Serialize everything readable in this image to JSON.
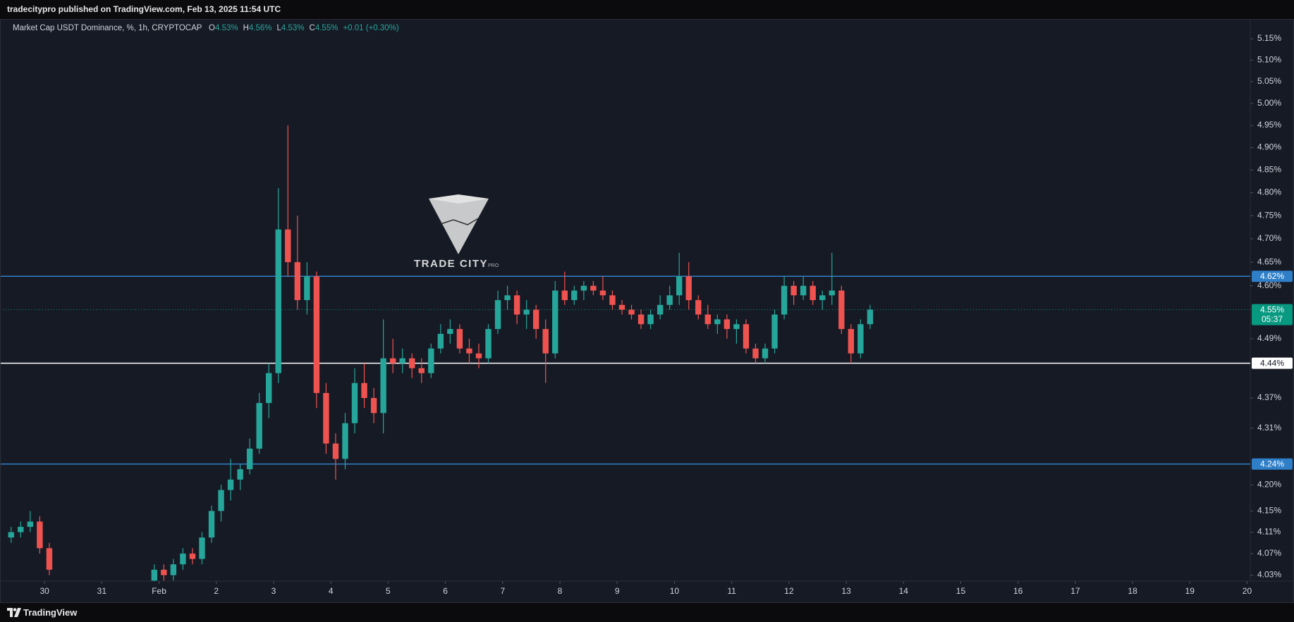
{
  "header": {
    "published": "tradecitypro published on TradingView.com, Feb 13, 2025 11:54 UTC"
  },
  "footer": {
    "brand": "TradingView"
  },
  "watermark": {
    "name": "TRADE CITY",
    "suffix": "PRO"
  },
  "chart_data": {
    "type": "candlestick",
    "title": "Market Cap USDT Dominance, %, 1h, CRYPTOCAP",
    "legend": {
      "open_key": "O",
      "open": "4.53%",
      "high_key": "H",
      "high": "4.56%",
      "low_key": "L",
      "low": "4.53%",
      "close_key": "C",
      "close": "4.55%",
      "change": "+0.01 (+0.30%)"
    },
    "up_color": "#26a69a",
    "down_color": "#ef5350",
    "log_scale": true,
    "ylim": [
      4.019,
      5.185
    ],
    "yticks": [
      {
        "value": 5.15,
        "label": "5.15%"
      },
      {
        "value": 5.1,
        "label": "5.10%"
      },
      {
        "value": 5.05,
        "label": "5.05%"
      },
      {
        "value": 5.0,
        "label": "5.00%"
      },
      {
        "value": 4.95,
        "label": "4.95%"
      },
      {
        "value": 4.9,
        "label": "4.90%"
      },
      {
        "value": 4.85,
        "label": "4.85%"
      },
      {
        "value": 4.8,
        "label": "4.80%"
      },
      {
        "value": 4.75,
        "label": "4.75%"
      },
      {
        "value": 4.7,
        "label": "4.70%"
      },
      {
        "value": 4.65,
        "label": "4.65%"
      },
      {
        "value": 4.6,
        "label": "4.60%"
      },
      {
        "value": 4.49,
        "label": "4.49%"
      },
      {
        "value": 4.37,
        "label": "4.37%"
      },
      {
        "value": 4.31,
        "label": "4.31%"
      },
      {
        "value": 4.2,
        "label": "4.20%"
      },
      {
        "value": 4.15,
        "label": "4.15%"
      },
      {
        "value": 4.11,
        "label": "4.11%"
      },
      {
        "value": 4.07,
        "label": "4.07%"
      },
      {
        "value": 4.03,
        "label": "4.03%"
      }
    ],
    "xlim": [
      "2025-01-29 05:20",
      "2025-02-20 01:20"
    ],
    "xticks": [
      {
        "value": "2025-01-30",
        "label": "30"
      },
      {
        "value": "2025-01-31",
        "label": "31"
      },
      {
        "value": "2025-02-01",
        "label": "Feb"
      },
      {
        "value": "2025-02-02",
        "label": "2"
      },
      {
        "value": "2025-02-03",
        "label": "3"
      },
      {
        "value": "2025-02-04",
        "label": "4"
      },
      {
        "value": "2025-02-05",
        "label": "5"
      },
      {
        "value": "2025-02-06",
        "label": "6"
      },
      {
        "value": "2025-02-07",
        "label": "7"
      },
      {
        "value": "2025-02-08",
        "label": "8"
      },
      {
        "value": "2025-02-09",
        "label": "9"
      },
      {
        "value": "2025-02-10",
        "label": "10"
      },
      {
        "value": "2025-02-11",
        "label": "11"
      },
      {
        "value": "2025-02-12",
        "label": "12"
      },
      {
        "value": "2025-02-13",
        "label": "13"
      },
      {
        "value": "2025-02-14",
        "label": "14"
      },
      {
        "value": "2025-02-15",
        "label": "15"
      },
      {
        "value": "2025-02-16",
        "label": "16"
      },
      {
        "value": "2025-02-17",
        "label": "17"
      },
      {
        "value": "2025-02-18",
        "label": "18"
      },
      {
        "value": "2025-02-19",
        "label": "19"
      },
      {
        "value": "2025-02-20",
        "label": "20"
      }
    ],
    "levels": [
      {
        "value": 4.62,
        "label": "4.62%",
        "color": "#2f7fc8",
        "style": "solid"
      },
      {
        "value": 4.55,
        "label": "4.55%",
        "countdown": "05:37",
        "color": "#089981",
        "style": "dotted"
      },
      {
        "value": 4.44,
        "label": "4.44%",
        "color": "#ffffff",
        "style": "solid"
      },
      {
        "value": 4.24,
        "label": "4.24%",
        "color": "#2f7fc8",
        "style": "solid"
      }
    ],
    "x": [
      "2025-01-29 08:00",
      "2025-01-29 12:00",
      "2025-01-29 16:00",
      "2025-01-29 20:00",
      "2025-01-30 00:00",
      "2025-01-31 20:00",
      "2025-02-01 00:00",
      "2025-02-01 04:00",
      "2025-02-01 08:00",
      "2025-02-01 12:00",
      "2025-02-01 16:00",
      "2025-02-01 20:00",
      "2025-02-02 00:00",
      "2025-02-02 04:00",
      "2025-02-02 08:00",
      "2025-02-02 12:00",
      "2025-02-02 16:00",
      "2025-02-02 20:00",
      "2025-02-03 00:00",
      "2025-02-03 04:00",
      "2025-02-03 08:00",
      "2025-02-03 12:00",
      "2025-02-03 16:00",
      "2025-02-03 20:00",
      "2025-02-04 00:00",
      "2025-02-04 04:00",
      "2025-02-04 08:00",
      "2025-02-04 12:00",
      "2025-02-04 16:00",
      "2025-02-04 20:00",
      "2025-02-05 00:00",
      "2025-02-05 04:00",
      "2025-02-05 08:00",
      "2025-02-05 12:00",
      "2025-02-05 16:00",
      "2025-02-05 20:00",
      "2025-02-06 00:00",
      "2025-02-06 04:00",
      "2025-02-06 08:00",
      "2025-02-06 12:00",
      "2025-02-06 16:00",
      "2025-02-06 20:00",
      "2025-02-07 00:00",
      "2025-02-07 04:00",
      "2025-02-07 08:00",
      "2025-02-07 12:00",
      "2025-02-07 16:00",
      "2025-02-07 20:00",
      "2025-02-08 00:00",
      "2025-02-08 04:00",
      "2025-02-08 08:00",
      "2025-02-08 12:00",
      "2025-02-08 16:00",
      "2025-02-08 20:00",
      "2025-02-09 00:00",
      "2025-02-09 04:00",
      "2025-02-09 08:00",
      "2025-02-09 12:00",
      "2025-02-09 16:00",
      "2025-02-09 20:00",
      "2025-02-10 00:00",
      "2025-02-10 04:00",
      "2025-02-10 08:00",
      "2025-02-10 12:00",
      "2025-02-10 16:00",
      "2025-02-10 20:00",
      "2025-02-11 00:00",
      "2025-02-11 04:00",
      "2025-02-11 08:00",
      "2025-02-11 12:00",
      "2025-02-11 16:00",
      "2025-02-11 20:00",
      "2025-02-12 00:00",
      "2025-02-12 04:00",
      "2025-02-12 08:00",
      "2025-02-12 12:00",
      "2025-02-12 16:00",
      "2025-02-12 20:00",
      "2025-02-13 00:00",
      "2025-02-13 04:00",
      "2025-02-13 08:00"
    ],
    "open": [
      4.1,
      4.11,
      4.12,
      4.13,
      4.08,
      4.02,
      4.04,
      4.03,
      4.05,
      4.07,
      4.06,
      4.1,
      4.15,
      4.19,
      4.21,
      4.23,
      4.27,
      4.36,
      4.42,
      4.72,
      4.65,
      4.57,
      4.62,
      4.38,
      4.28,
      4.25,
      4.32,
      4.4,
      4.37,
      4.34,
      4.45,
      4.44,
      4.45,
      4.43,
      4.42,
      4.47,
      4.5,
      4.51,
      4.47,
      4.46,
      4.45,
      4.51,
      4.57,
      4.58,
      4.54,
      4.55,
      4.51,
      4.46,
      4.59,
      4.57,
      4.59,
      4.6,
      4.59,
      4.58,
      4.56,
      4.55,
      4.54,
      4.52,
      4.54,
      4.56,
      4.58,
      4.62,
      4.57,
      4.54,
      4.52,
      4.53,
      4.51,
      4.52,
      4.47,
      4.45,
      4.47,
      4.54,
      4.6,
      4.58,
      4.6,
      4.57,
      4.58,
      4.59,
      4.51,
      4.46,
      4.52
    ],
    "high": [
      4.12,
      4.13,
      4.15,
      4.14,
      4.09,
      4.05,
      4.05,
      4.06,
      4.08,
      4.08,
      4.11,
      4.16,
      4.2,
      4.25,
      4.24,
      4.29,
      4.38,
      4.44,
      4.81,
      4.95,
      4.75,
      4.65,
      4.63,
      4.4,
      4.3,
      4.34,
      4.43,
      4.44,
      4.39,
      4.53,
      4.49,
      4.47,
      4.46,
      4.45,
      4.48,
      4.52,
      4.53,
      4.52,
      4.49,
      4.48,
      4.52,
      4.59,
      4.6,
      4.59,
      4.57,
      4.56,
      4.53,
      4.61,
      4.63,
      4.6,
      4.61,
      4.61,
      4.62,
      4.59,
      4.57,
      4.56,
      4.55,
      4.55,
      4.58,
      4.6,
      4.67,
      4.65,
      4.58,
      4.56,
      4.54,
      4.54,
      4.53,
      4.53,
      4.48,
      4.48,
      4.55,
      4.62,
      4.61,
      4.62,
      4.61,
      4.59,
      4.67,
      4.6,
      4.52,
      4.53,
      4.56
    ],
    "low": [
      4.09,
      4.1,
      4.11,
      4.07,
      4.03,
      4.01,
      4.02,
      4.02,
      4.04,
      4.05,
      4.05,
      4.09,
      4.13,
      4.17,
      4.19,
      4.22,
      4.26,
      4.33,
      4.4,
      4.62,
      4.55,
      4.54,
      4.35,
      4.26,
      4.21,
      4.23,
      4.3,
      4.35,
      4.32,
      4.3,
      4.42,
      4.42,
      4.41,
      4.4,
      4.41,
      4.46,
      4.48,
      4.46,
      4.44,
      4.43,
      4.44,
      4.5,
      4.55,
      4.52,
      4.51,
      4.49,
      4.4,
      4.45,
      4.56,
      4.56,
      4.57,
      4.58,
      4.57,
      4.55,
      4.54,
      4.53,
      4.51,
      4.51,
      4.53,
      4.55,
      4.56,
      4.55,
      4.53,
      4.51,
      4.5,
      4.49,
      4.48,
      4.46,
      4.44,
      4.44,
      4.46,
      4.53,
      4.56,
      4.57,
      4.56,
      4.55,
      4.56,
      4.5,
      4.44,
      4.45,
      4.51
    ],
    "close": [
      4.11,
      4.12,
      4.13,
      4.08,
      4.04,
      4.04,
      4.03,
      4.05,
      4.07,
      4.06,
      4.1,
      4.15,
      4.19,
      4.21,
      4.23,
      4.27,
      4.36,
      4.42,
      4.72,
      4.65,
      4.57,
      4.62,
      4.38,
      4.28,
      4.25,
      4.32,
      4.4,
      4.37,
      4.34,
      4.45,
      4.44,
      4.45,
      4.43,
      4.42,
      4.47,
      4.5,
      4.51,
      4.47,
      4.46,
      4.45,
      4.51,
      4.57,
      4.58,
      4.54,
      4.55,
      4.51,
      4.46,
      4.59,
      4.57,
      4.59,
      4.6,
      4.59,
      4.58,
      4.56,
      4.55,
      4.54,
      4.52,
      4.54,
      4.56,
      4.58,
      4.62,
      4.57,
      4.54,
      4.52,
      4.53,
      4.51,
      4.52,
      4.47,
      4.45,
      4.47,
      4.54,
      4.6,
      4.58,
      4.6,
      4.57,
      4.58,
      4.59,
      4.51,
      4.46,
      4.52,
      4.55
    ]
  }
}
